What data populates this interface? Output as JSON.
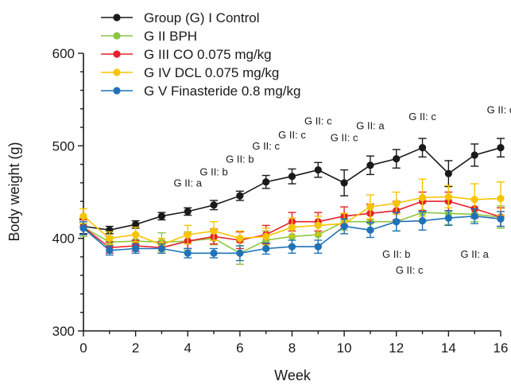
{
  "chart_data": {
    "type": "line",
    "xlabel": "Week",
    "ylabel": "Body weight (g)",
    "xlim": [
      0,
      16
    ],
    "ylim": [
      300,
      600
    ],
    "xticks": [
      "0",
      "2",
      "4",
      "6",
      "8",
      "10",
      "12",
      "14",
      "16"
    ],
    "yticks": [
      "300",
      "400",
      "500",
      "600"
    ],
    "grid": false,
    "legend_position": "top-left",
    "x": [
      0,
      1,
      2,
      3,
      4,
      5,
      6,
      7,
      8,
      9,
      10,
      11,
      12,
      13,
      14,
      15,
      16
    ],
    "series": [
      {
        "name": "Group (G) I Control",
        "color": "#1a1a1a",
        "values": [
          413,
          409,
          415,
          424,
          429,
          436,
          446,
          461,
          467,
          474,
          460,
          479,
          486,
          498,
          470,
          490,
          498
        ],
        "errors": [
          8,
          4,
          4,
          4,
          4,
          5,
          5,
          7,
          8,
          8,
          14,
          10,
          10,
          10,
          14,
          12,
          10
        ]
      },
      {
        "name": "G II BPH",
        "color": "#8cc63f",
        "values": [
          412,
          396,
          397,
          396,
          397,
          400,
          384,
          398,
          402,
          404,
          418,
          418,
          418,
          428,
          427,
          426,
          423
        ],
        "errors": [
          10,
          6,
          7,
          10,
          10,
          7,
          12,
          10,
          10,
          11,
          9,
          10,
          10,
          10,
          12,
          8,
          12
        ]
      },
      {
        "name": "G III CO 0.075 mg/kg",
        "color": "#e8202a",
        "values": [
          412,
          390,
          392,
          390,
          397,
          402,
          398,
          404,
          418,
          418,
          424,
          427,
          430,
          440,
          440,
          432,
          423
        ],
        "errors": [
          8,
          6,
          6,
          6,
          8,
          8,
          9,
          10,
          10,
          10,
          10,
          10,
          10,
          10,
          10,
          10,
          10
        ]
      },
      {
        "name": "G IV DCL 0.075 mg/kg",
        "color": "#f7c400",
        "values": [
          424,
          400,
          404,
          393,
          404,
          408,
          400,
          402,
          412,
          414,
          416,
          434,
          438,
          444,
          445,
          442,
          443
        ],
        "errors": [
          8,
          7,
          8,
          7,
          10,
          10,
          8,
          9,
          10,
          10,
          11,
          13,
          12,
          20,
          12,
          17,
          18
        ]
      },
      {
        "name": "G V Finasteride 0.8 mg/kg",
        "color": "#1f72b8",
        "values": [
          411,
          387,
          389,
          389,
          384,
          384,
          384,
          389,
          391,
          391,
          413,
          409,
          418,
          419,
          422,
          424,
          421
        ],
        "errors": [
          7,
          5,
          5,
          5,
          5,
          5,
          8,
          6,
          7,
          7,
          8,
          8,
          10,
          10,
          8,
          8,
          8
        ]
      }
    ],
    "annotations": [
      {
        "text": "G II: a",
        "x": 4,
        "y": 456
      },
      {
        "text": "G II: b",
        "x": 5,
        "y": 468
      },
      {
        "text": "G II: b",
        "x": 6,
        "y": 482
      },
      {
        "text": "G II: c",
        "x": 7,
        "y": 496
      },
      {
        "text": "G II: c",
        "x": 8,
        "y": 508
      },
      {
        "text": "G II: c",
        "x": 9,
        "y": 523
      },
      {
        "text": "G II: c",
        "x": 10,
        "y": 505
      },
      {
        "text": "G II: a",
        "x": 11,
        "y": 518
      },
      {
        "text": "G II: c",
        "x": 13,
        "y": 528
      },
      {
        "text": "G II: c",
        "x": 16,
        "y": 535
      },
      {
        "text": "G II: b",
        "x": 12,
        "y": 379
      },
      {
        "text": "G II: c",
        "x": 12.5,
        "y": 362
      },
      {
        "text": "G II: a",
        "x": 15,
        "y": 379
      }
    ]
  }
}
